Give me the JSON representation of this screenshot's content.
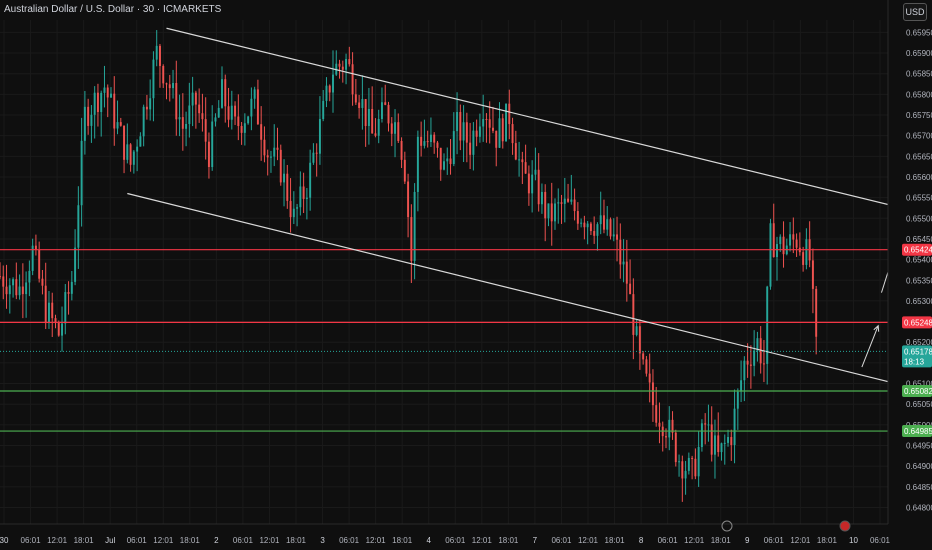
{
  "header": {
    "symbol_title": "Australian Dollar / U.S. Dollar · 30 · ICMARKETS",
    "currency_button": "USD"
  },
  "colors": {
    "bull": "#26a69a",
    "bear": "#ef5350",
    "resistance": "#f23645",
    "support": "#4caf50",
    "trendline": "#d9d9d9",
    "background": "#0f0f0f"
  },
  "chart_data": {
    "type": "candlestick",
    "title": "Australian Dollar / U.S. Dollar · 30 · ICMARKETS",
    "ylim": [
      0.6476,
      0.6598
    ],
    "y_ticks": [
      "0.65950",
      "0.65900",
      "0.65850",
      "0.65800",
      "0.65750",
      "0.65700",
      "0.65650",
      "0.65600",
      "0.65550",
      "0.65500",
      "0.65450",
      "0.65400",
      "0.65350",
      "0.65300",
      "0.65250",
      "0.65200",
      "0.65150",
      "0.65100",
      "0.65050",
      "0.65000",
      "0.64950",
      "0.64900",
      "0.64850",
      "0.64800"
    ],
    "x_ticks": [
      "30",
      "06:01",
      "12:01",
      "18:01",
      "Jul",
      "06:01",
      "12:01",
      "18:01",
      "2",
      "06:01",
      "12:01",
      "18:01",
      "3",
      "06:01",
      "12:01",
      "18:01",
      "4",
      "06:01",
      "12:01",
      "18:01",
      "7",
      "06:01",
      "12:01",
      "18:01",
      "8",
      "06:01",
      "12:01",
      "18:01",
      "9",
      "06:01",
      "12:01",
      "18:01",
      "10",
      "06:01"
    ],
    "x_range_index": [
      0,
      272
    ],
    "price_path_keypoints": [
      [
        0,
        0.6536
      ],
      [
        6,
        0.6533
      ],
      [
        10,
        0.6542
      ],
      [
        14,
        0.6528
      ],
      [
        18,
        0.6522
      ],
      [
        22,
        0.6535
      ],
      [
        26,
        0.6575
      ],
      [
        32,
        0.6582
      ],
      [
        36,
        0.6572
      ],
      [
        40,
        0.6563
      ],
      [
        44,
        0.6576
      ],
      [
        48,
        0.659
      ],
      [
        52,
        0.6582
      ],
      [
        56,
        0.6572
      ],
      [
        60,
        0.6578
      ],
      [
        64,
        0.6566
      ],
      [
        68,
        0.658
      ],
      [
        72,
        0.6572
      ],
      [
        78,
        0.6578
      ],
      [
        82,
        0.6566
      ],
      [
        86,
        0.6562
      ],
      [
        90,
        0.655
      ],
      [
        94,
        0.6558
      ],
      [
        98,
        0.6572
      ],
      [
        102,
        0.6586
      ],
      [
        106,
        0.6588
      ],
      [
        110,
        0.658
      ],
      [
        114,
        0.657
      ],
      [
        118,
        0.6576
      ],
      [
        122,
        0.6572
      ],
      [
        124,
        0.6562
      ],
      [
        126,
        0.654
      ],
      [
        128,
        0.657
      ],
      [
        132,
        0.6568
      ],
      [
        136,
        0.6562
      ],
      [
        140,
        0.6572
      ],
      [
        144,
        0.6568
      ],
      [
        148,
        0.6578
      ],
      [
        152,
        0.657
      ],
      [
        156,
        0.6575
      ],
      [
        160,
        0.656
      ],
      [
        164,
        0.6558
      ],
      [
        168,
        0.655
      ],
      [
        172,
        0.6553
      ],
      [
        176,
        0.6552
      ],
      [
        180,
        0.655
      ],
      [
        184,
        0.6548
      ],
      [
        188,
        0.6545
      ],
      [
        192,
        0.6535
      ],
      [
        196,
        0.6515
      ],
      [
        200,
        0.6505
      ],
      [
        204,
        0.65
      ],
      [
        208,
        0.6492
      ],
      [
        212,
        0.6488
      ],
      [
        216,
        0.65
      ],
      [
        220,
        0.6492
      ],
      [
        224,
        0.6498
      ],
      [
        228,
        0.6515
      ],
      [
        232,
        0.652
      ],
      [
        234,
        0.6515
      ],
      [
        236,
        0.6545
      ],
      [
        240,
        0.6543
      ],
      [
        244,
        0.6545
      ],
      [
        248,
        0.654
      ],
      [
        250,
        0.6518
      ]
    ],
    "horizontal_levels": [
      {
        "price": 0.65424,
        "label": "0.65424",
        "color": "#f23645"
      },
      {
        "price": 0.65248,
        "label": "0.65248",
        "color": "#f23645"
      },
      {
        "price": 0.65082,
        "label": "0.65082",
        "color": "#4caf50"
      },
      {
        "price": 0.64985,
        "label": "0.64985",
        "color": "#4caf50"
      }
    ],
    "current_price": {
      "price": 0.65178,
      "label": "0.65178",
      "countdown": "18:13",
      "color": "#26a69a"
    },
    "trendlines": [
      {
        "from": [
          51,
          0.6596
        ],
        "to": [
          310,
          0.6546
        ]
      },
      {
        "from": [
          39,
          0.6556
        ],
        "to": [
          300,
          0.6505
        ]
      }
    ],
    "arrows": [
      {
        "from": [
          264,
          0.6514
        ],
        "to": [
          269,
          0.6524
        ]
      },
      {
        "from": [
          270,
          0.6532
        ],
        "to": [
          274,
          0.6542
        ]
      }
    ]
  }
}
